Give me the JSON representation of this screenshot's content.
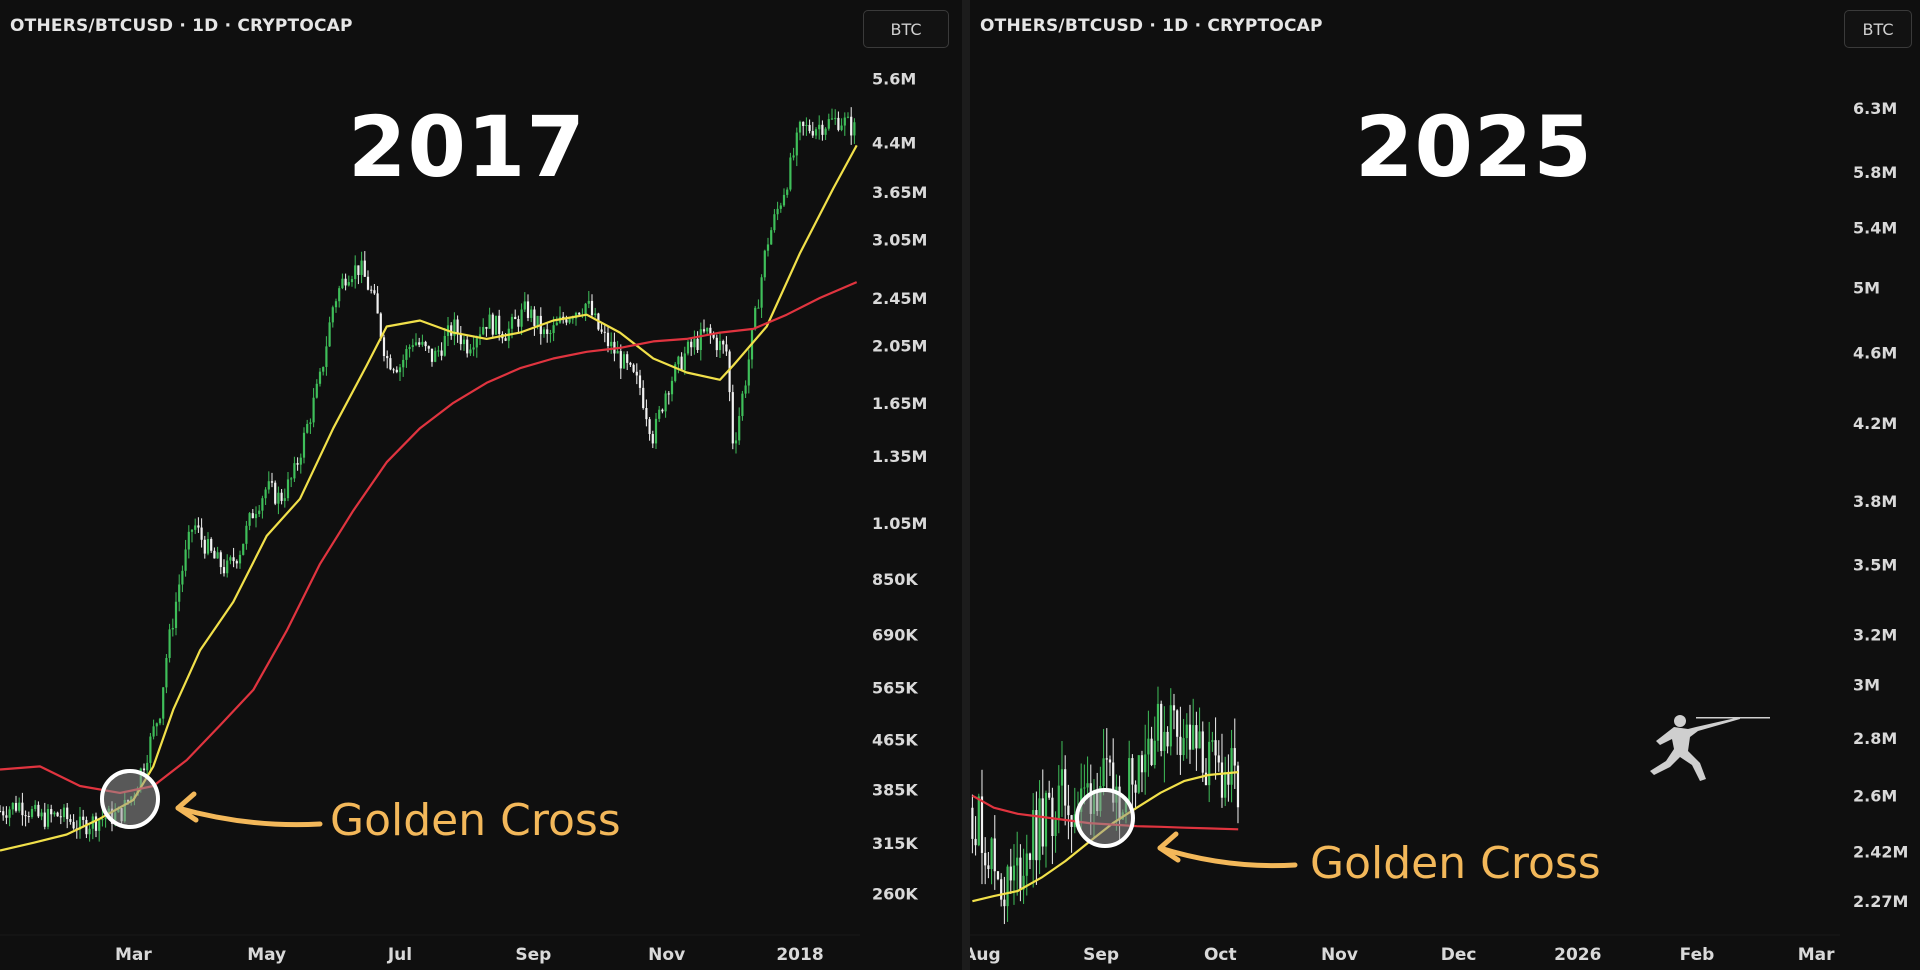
{
  "chart_data": [
    {
      "type": "line",
      "panel": "left",
      "symbol_header": "OTHERS/BTCUSD · 1D · CRYPTOCAP",
      "currency": "BTC",
      "title": "2017",
      "annotation": "Golden Cross",
      "yscale": "log",
      "y_ticks": [
        {
          "label": "5.6M",
          "value": 5600000
        },
        {
          "label": "4.4M",
          "value": 4400000
        },
        {
          "label": "3.65M",
          "value": 3650000
        },
        {
          "label": "3.05M",
          "value": 3050000
        },
        {
          "label": "2.45M",
          "value": 2450000
        },
        {
          "label": "2.05M",
          "value": 2050000
        },
        {
          "label": "1.65M",
          "value": 1650000
        },
        {
          "label": "1.35M",
          "value": 1350000
        },
        {
          "label": "1.05M",
          "value": 1050000
        },
        {
          "label": "850K",
          "value": 850000
        },
        {
          "label": "690K",
          "value": 690000
        },
        {
          "label": "565K",
          "value": 565000
        },
        {
          "label": "465K",
          "value": 465000
        },
        {
          "label": "385K",
          "value": 385000
        },
        {
          "label": "315K",
          "value": 315000
        },
        {
          "label": "260K",
          "value": 260000
        }
      ],
      "ylim": [
        240000,
        6000000
      ],
      "xlim": [
        0,
        12.9
      ],
      "x_ticks": [
        {
          "label": "Mar",
          "value": 2.0
        },
        {
          "label": "May",
          "value": 4.0
        },
        {
          "label": "Jul",
          "value": 6.0
        },
        {
          "label": "Sep",
          "value": 8.0
        },
        {
          "label": "Nov",
          "value": 10.0
        },
        {
          "label": "2018",
          "value": 12.0
        }
      ],
      "series": [
        {
          "kind": "price",
          "points": [
            [
              0.0,
              355000
            ],
            [
              0.3,
              365000
            ],
            [
              0.6,
              345000
            ],
            [
              0.9,
              350000
            ],
            [
              1.2,
              335000
            ],
            [
              1.5,
              345000
            ],
            [
              1.8,
              350000
            ],
            [
              2.0,
              380000
            ],
            [
              2.2,
              440000
            ],
            [
              2.4,
              520000
            ],
            [
              2.5,
              640000
            ],
            [
              2.7,
              850000
            ],
            [
              2.9,
              1050000
            ],
            [
              3.0,
              1000000
            ],
            [
              3.2,
              920000
            ],
            [
              3.4,
              880000
            ],
            [
              3.6,
              950000
            ],
            [
              3.8,
              1100000
            ],
            [
              4.0,
              1200000
            ],
            [
              4.2,
              1150000
            ],
            [
              4.4,
              1250000
            ],
            [
              4.6,
              1500000
            ],
            [
              4.8,
              1800000
            ],
            [
              5.0,
              2400000
            ],
            [
              5.2,
              2700000
            ],
            [
              5.4,
              2750000
            ],
            [
              5.6,
              2450000
            ],
            [
              5.8,
              1950000
            ],
            [
              6.0,
              1900000
            ],
            [
              6.2,
              2100000
            ],
            [
              6.5,
              1950000
            ],
            [
              6.8,
              2200000
            ],
            [
              7.0,
              2050000
            ],
            [
              7.3,
              2250000
            ],
            [
              7.6,
              2150000
            ],
            [
              7.9,
              2350000
            ],
            [
              8.2,
              2100000
            ],
            [
              8.5,
              2300000
            ],
            [
              8.8,
              2400000
            ],
            [
              9.0,
              2150000
            ],
            [
              9.3,
              1950000
            ],
            [
              9.6,
              1750000
            ],
            [
              9.8,
              1450000
            ],
            [
              10.0,
              1750000
            ],
            [
              10.3,
              2000000
            ],
            [
              10.6,
              2150000
            ],
            [
              10.9,
              2000000
            ],
            [
              11.0,
              1400000
            ],
            [
              11.2,
              1850000
            ],
            [
              11.5,
              3000000
            ],
            [
              11.8,
              3800000
            ],
            [
              12.0,
              4600000
            ],
            [
              12.3,
              4700000
            ],
            [
              12.6,
              4800000
            ],
            [
              12.85,
              4600000
            ]
          ]
        },
        {
          "kind": "ma_short",
          "color": "#f1e04a",
          "points": [
            [
              0.0,
              306000
            ],
            [
              0.5,
              315000
            ],
            [
              1.0,
              325000
            ],
            [
              1.5,
              345000
            ],
            [
              2.0,
              370000
            ],
            [
              2.3,
              420000
            ],
            [
              2.6,
              520000
            ],
            [
              3.0,
              650000
            ],
            [
              3.5,
              780000
            ],
            [
              4.0,
              1000000
            ],
            [
              4.5,
              1150000
            ],
            [
              5.0,
              1500000
            ],
            [
              5.5,
              1900000
            ],
            [
              5.8,
              2200000
            ],
            [
              6.3,
              2250000
            ],
            [
              6.8,
              2150000
            ],
            [
              7.3,
              2100000
            ],
            [
              7.8,
              2150000
            ],
            [
              8.3,
              2250000
            ],
            [
              8.8,
              2300000
            ],
            [
              9.3,
              2150000
            ],
            [
              9.8,
              1950000
            ],
            [
              10.3,
              1850000
            ],
            [
              10.8,
              1800000
            ],
            [
              11.0,
              1900000
            ],
            [
              11.5,
              2200000
            ],
            [
              12.0,
              2900000
            ],
            [
              12.5,
              3700000
            ],
            [
              12.85,
              4350000
            ]
          ]
        },
        {
          "kind": "ma_long",
          "color": "#e0343f",
          "points": [
            [
              0.0,
              415000
            ],
            [
              0.6,
              420000
            ],
            [
              1.2,
              390000
            ],
            [
              1.8,
              380000
            ],
            [
              2.3,
              390000
            ],
            [
              2.8,
              430000
            ],
            [
              3.3,
              490000
            ],
            [
              3.8,
              560000
            ],
            [
              4.3,
              700000
            ],
            [
              4.8,
              900000
            ],
            [
              5.3,
              1100000
            ],
            [
              5.8,
              1320000
            ],
            [
              6.3,
              1500000
            ],
            [
              6.8,
              1650000
            ],
            [
              7.3,
              1780000
            ],
            [
              7.8,
              1880000
            ],
            [
              8.3,
              1950000
            ],
            [
              8.8,
              2000000
            ],
            [
              9.3,
              2030000
            ],
            [
              9.8,
              2080000
            ],
            [
              10.3,
              2100000
            ],
            [
              10.8,
              2150000
            ],
            [
              11.3,
              2180000
            ],
            [
              11.8,
              2300000
            ],
            [
              12.3,
              2450000
            ],
            [
              12.85,
              2600000
            ]
          ]
        }
      ]
    },
    {
      "type": "line",
      "panel": "right",
      "symbol_header": "OTHERS/BTCUSD · 1D · CRYPTOCAP",
      "currency": "BTC",
      "title": "2025",
      "annotation": "Golden Cross",
      "yscale": "log",
      "y_ticks": [
        {
          "label": "6.3M",
          "value": 6300000
        },
        {
          "label": "5.8M",
          "value": 5800000
        },
        {
          "label": "5.4M",
          "value": 5400000
        },
        {
          "label": "5M",
          "value": 5000000
        },
        {
          "label": "4.6M",
          "value": 4600000
        },
        {
          "label": "4.2M",
          "value": 4200000
        },
        {
          "label": "3.8M",
          "value": 3800000
        },
        {
          "label": "3.5M",
          "value": 3500000
        },
        {
          "label": "3.2M",
          "value": 3200000
        },
        {
          "label": "3M",
          "value": 3000000
        },
        {
          "label": "2.8M",
          "value": 2800000
        },
        {
          "label": "2.6M",
          "value": 2600000
        },
        {
          "label": "2.42M",
          "value": 2420000
        },
        {
          "label": "2.27M",
          "value": 2270000
        }
      ],
      "ylim": [
        2230000,
        6700000
      ],
      "xlim": [
        7.9,
        15.2
      ],
      "x_ticks": [
        {
          "label": "Aug",
          "value": 8.0
        },
        {
          "label": "Sep",
          "value": 9.0
        },
        {
          "label": "Oct",
          "value": 10.0
        },
        {
          "label": "Nov",
          "value": 11.0
        },
        {
          "label": "Dec",
          "value": 12.0
        },
        {
          "label": "2026",
          "value": 13.0
        },
        {
          "label": "Feb",
          "value": 14.0
        },
        {
          "label": "Mar",
          "value": 15.0
        }
      ],
      "series": [
        {
          "kind": "price",
          "points": [
            [
              7.92,
              2560000
            ],
            [
              8.0,
              2480000
            ],
            [
              8.1,
              2380000
            ],
            [
              8.2,
              2300000
            ],
            [
              8.3,
              2350000
            ],
            [
              8.4,
              2450000
            ],
            [
              8.5,
              2500000
            ],
            [
              8.6,
              2560000
            ],
            [
              8.7,
              2600000
            ],
            [
              8.8,
              2550000
            ],
            [
              8.9,
              2620000
            ],
            [
              9.0,
              2650000
            ],
            [
              9.1,
              2600000
            ],
            [
              9.2,
              2640000
            ],
            [
              9.3,
              2720000
            ],
            [
              9.4,
              2800000
            ],
            [
              9.5,
              2830000
            ],
            [
              9.6,
              2870000
            ],
            [
              9.7,
              2820000
            ],
            [
              9.8,
              2750000
            ],
            [
              9.9,
              2700000
            ],
            [
              10.0,
              2680000
            ],
            [
              10.1,
              2660000
            ],
            [
              10.15,
              2600000
            ]
          ]
        },
        {
          "kind": "ma_short",
          "color": "#f1e04a",
          "points": [
            [
              7.92,
              2270000
            ],
            [
              8.1,
              2285000
            ],
            [
              8.3,
              2300000
            ],
            [
              8.5,
              2340000
            ],
            [
              8.7,
              2390000
            ],
            [
              8.9,
              2450000
            ],
            [
              9.1,
              2510000
            ],
            [
              9.3,
              2560000
            ],
            [
              9.5,
              2610000
            ],
            [
              9.7,
              2650000
            ],
            [
              9.9,
              2670000
            ],
            [
              10.15,
              2680000
            ]
          ]
        },
        {
          "kind": "ma_long",
          "color": "#e0343f",
          "points": [
            [
              7.92,
              2600000
            ],
            [
              8.1,
              2560000
            ],
            [
              8.3,
              2540000
            ],
            [
              8.5,
              2530000
            ],
            [
              8.7,
              2520000
            ],
            [
              8.9,
              2510000
            ],
            [
              9.1,
              2505000
            ],
            [
              9.3,
              2500000
            ],
            [
              9.5,
              2498000
            ],
            [
              9.7,
              2495000
            ],
            [
              9.9,
              2493000
            ],
            [
              10.15,
              2490000
            ]
          ]
        }
      ]
    }
  ]
}
